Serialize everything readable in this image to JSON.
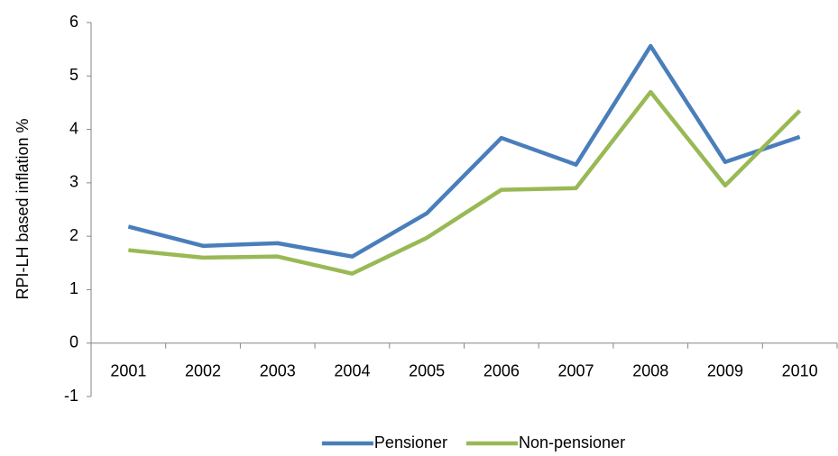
{
  "chart_data": {
    "type": "line",
    "y_label": "RPI-LH based inflation %",
    "categories": [
      "2001",
      "2002",
      "2003",
      "2004",
      "2005",
      "2006",
      "2007",
      "2008",
      "2009",
      "2010"
    ],
    "series": [
      {
        "name": "Pensioner",
        "color": "#4a7ebb",
        "values": [
          2.18,
          1.82,
          1.87,
          1.62,
          2.43,
          3.84,
          3.34,
          5.56,
          3.39,
          3.86
        ]
      },
      {
        "name": "Non-pensioner",
        "color": "#98b954",
        "values": [
          1.74,
          1.6,
          1.62,
          1.3,
          1.97,
          2.87,
          2.9,
          4.7,
          2.95,
          4.35
        ]
      }
    ],
    "ylim": [
      -1,
      6
    ],
    "yticks": [
      -1,
      0,
      1,
      2,
      3,
      4,
      5,
      6
    ],
    "legend": "bottom"
  }
}
